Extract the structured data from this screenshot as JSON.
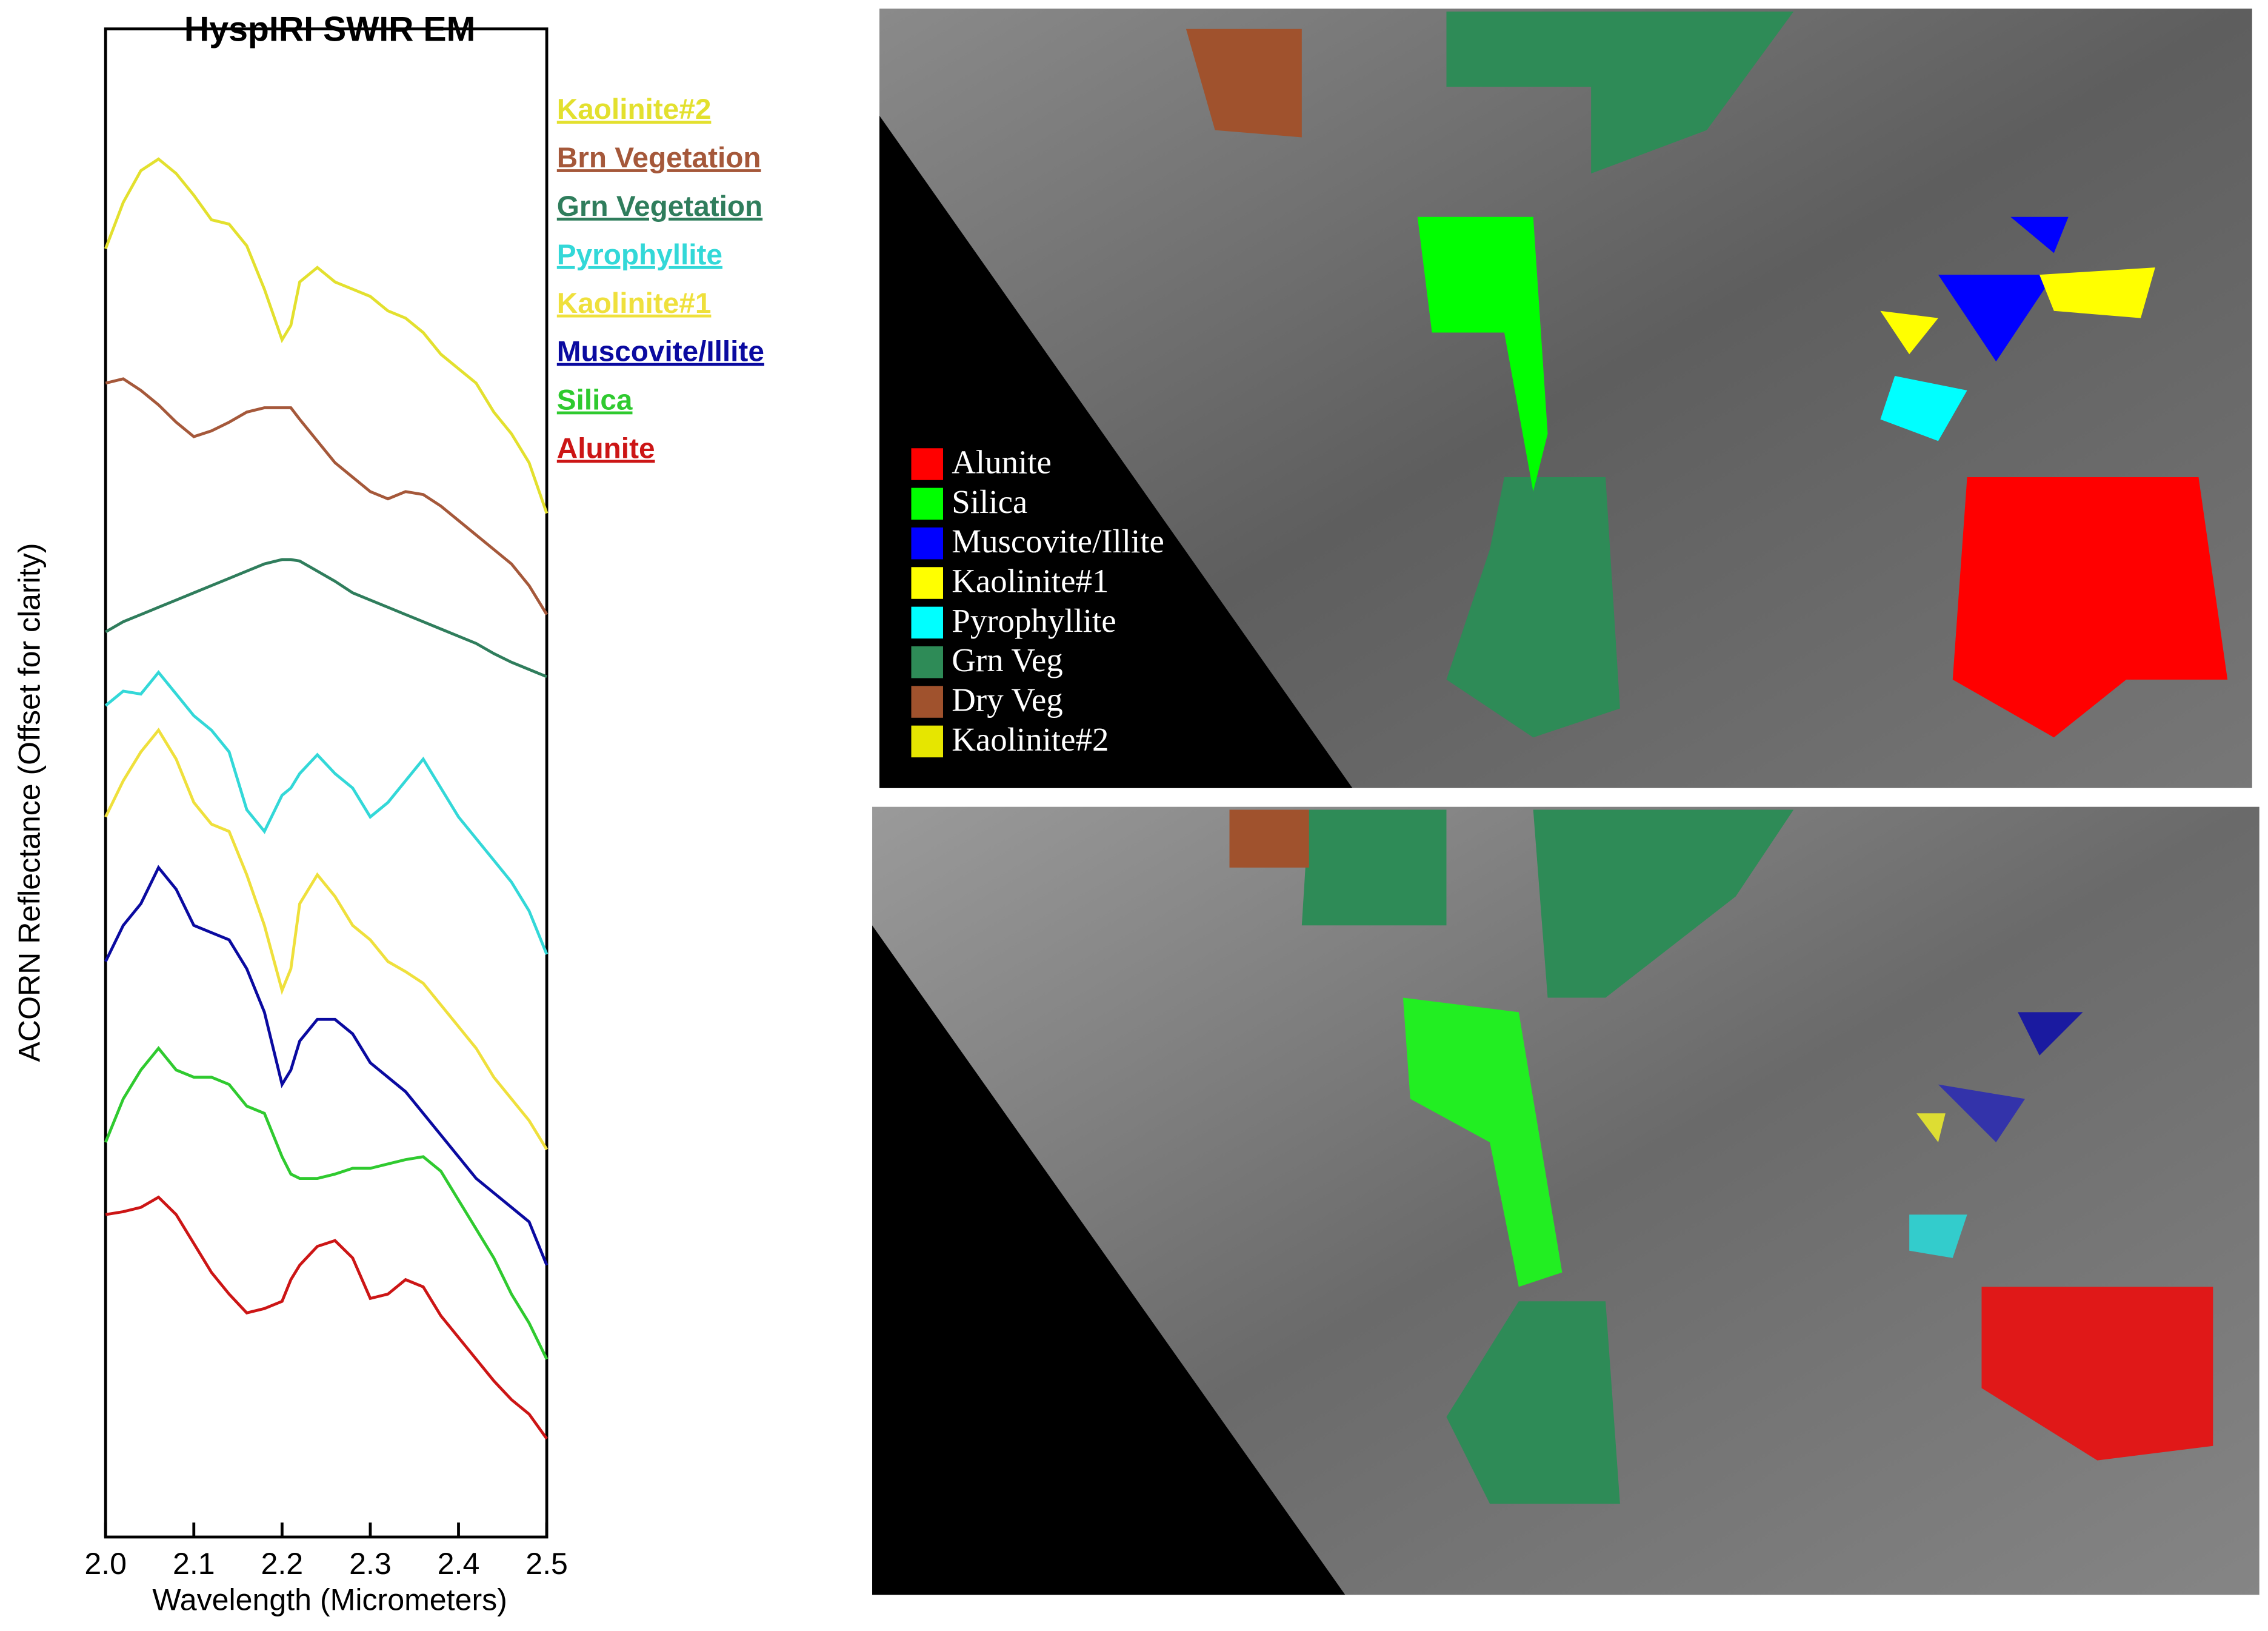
{
  "chart_data": {
    "type": "line",
    "title": "HyspIRI SWIR EM",
    "x_label": "Wavelength (Micrometers)",
    "y_label": "ACORN Reflectance (Offset for clarity)",
    "x": [
      2.0,
      2.02,
      2.04,
      2.06,
      2.08,
      2.1,
      2.12,
      2.14,
      2.16,
      2.18,
      2.2,
      2.21,
      2.22,
      2.24,
      2.26,
      2.28,
      2.3,
      2.32,
      2.34,
      2.36,
      2.38,
      2.4,
      2.42,
      2.44,
      2.46,
      2.48,
      2.5
    ],
    "xlim": [
      2.0,
      2.5
    ],
    "xticks": [
      {
        "value": 2,
        "label": "2.0"
      },
      2.1,
      2.2,
      2.3,
      2.4,
      2.5
    ],
    "ylim": [
      0,
      1043
    ],
    "series": [
      {
        "name": "Kaolinite#2",
        "color": "#e3e02e",
        "values": [
          891,
          923,
          945,
          953,
          943,
          928,
          911,
          908,
          893,
          863,
          828,
          838,
          868,
          878,
          868,
          863,
          858,
          848,
          843,
          833,
          818,
          808,
          798,
          778,
          763,
          743,
          708
        ]
      },
      {
        "name": "Brn Vegetation",
        "color": "#a5583a",
        "values": [
          798,
          801,
          793,
          783,
          771,
          761,
          765,
          771,
          778,
          781,
          781,
          781,
          773,
          758,
          743,
          733,
          723,
          718,
          723,
          721,
          713,
          703,
          693,
          683,
          673,
          658,
          638
        ]
      },
      {
        "name": "Grn Vegetation",
        "color": "#2f7d5c",
        "values": [
          626,
          633,
          638,
          643,
          648,
          653,
          658,
          663,
          668,
          673,
          676,
          676,
          675,
          668,
          661,
          653,
          648,
          643,
          638,
          633,
          628,
          623,
          618,
          611,
          605,
          600,
          595
        ]
      },
      {
        "name": "Pyrophyllite",
        "color": "#33d8d8",
        "values": [
          575,
          585,
          583,
          598,
          583,
          568,
          558,
          543,
          503,
          488,
          513,
          518,
          528,
          541,
          528,
          518,
          498,
          508,
          523,
          538,
          518,
          498,
          483,
          468,
          453,
          433,
          403
        ]
      },
      {
        "name": "Kaolinite#1",
        "color": "#efe03c",
        "values": [
          498,
          523,
          543,
          558,
          538,
          508,
          493,
          488,
          458,
          423,
          378,
          393,
          438,
          458,
          443,
          423,
          413,
          398,
          391,
          383,
          368,
          353,
          338,
          318,
          303,
          288,
          268
        ]
      },
      {
        "name": "Muscovite/Illite",
        "color": "#0a0aa0",
        "values": [
          398,
          423,
          438,
          463,
          448,
          423,
          418,
          413,
          393,
          363,
          313,
          323,
          343,
          358,
          358,
          348,
          328,
          318,
          308,
          293,
          278,
          263,
          248,
          238,
          228,
          218,
          188
        ]
      },
      {
        "name": "Silica",
        "color": "#2fca2f",
        "values": [
          273,
          303,
          323,
          338,
          323,
          318,
          318,
          313,
          298,
          293,
          263,
          251,
          248,
          248,
          251,
          255,
          255,
          258,
          261,
          263,
          253,
          233,
          213,
          193,
          168,
          148,
          123
        ]
      },
      {
        "name": "Alunite",
        "color": "#cc1515",
        "values": [
          223,
          225,
          228,
          235,
          223,
          203,
          183,
          168,
          155,
          158,
          163,
          178,
          188,
          201,
          205,
          193,
          165,
          168,
          178,
          173,
          153,
          138,
          123,
          108,
          95,
          85,
          68
        ]
      }
    ]
  },
  "map_legend": [
    {
      "label": "Alunite",
      "color": "#ff0000"
    },
    {
      "label": "Silica",
      "color": "#00ff00"
    },
    {
      "label": "Muscovite/Illite",
      "color": "#0000ff"
    },
    {
      "label": "Kaolinite#1",
      "color": "#ffff00"
    },
    {
      "label": "Pyrophyllite",
      "color": "#00ffff"
    },
    {
      "label": "Grn Veg",
      "color": "#2e8b57"
    },
    {
      "label": "Dry Veg",
      "color": "#a0522d"
    },
    {
      "label": "Kaolinite#2",
      "color": "#e6e600"
    }
  ]
}
